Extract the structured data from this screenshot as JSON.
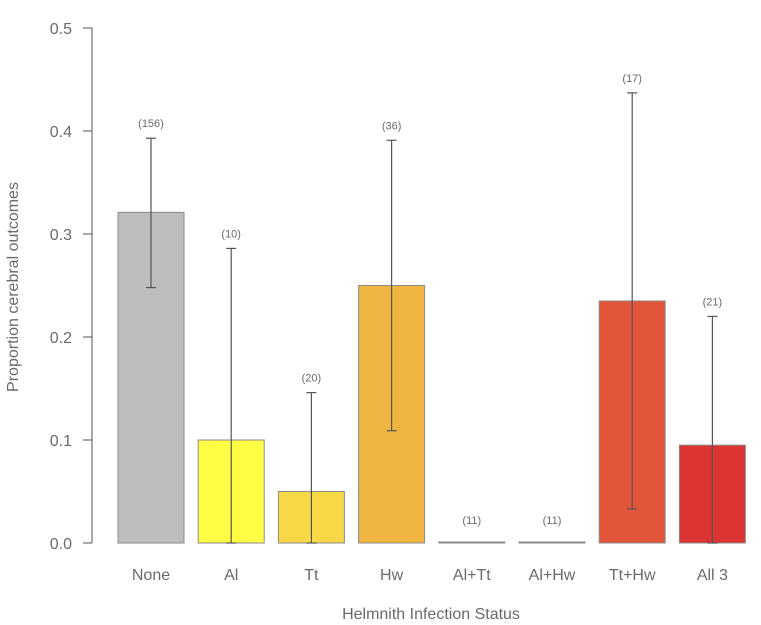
{
  "chart_data": {
    "type": "bar",
    "title": "",
    "xlabel": "Helmnith Infection Status",
    "ylabel": "Proportion cerebral outcomes",
    "ylim": [
      0,
      0.5
    ],
    "yticks": [
      "0.0",
      "0.1",
      "0.2",
      "0.3",
      "0.4",
      "0.5"
    ],
    "grid": false,
    "categories": [
      "None",
      "Al",
      "Tt",
      "Hw",
      "Al+Tt",
      "Al+Hw",
      "Tt+Hw",
      "All 3"
    ],
    "values": [
      0.321,
      0.1,
      0.05,
      0.25,
      0,
      0,
      0.235,
      0.095
    ],
    "error_upper": [
      0.393,
      0.286,
      0.146,
      0.391,
      0,
      0,
      0.437,
      0.22
    ],
    "error_lower": [
      0.248,
      0,
      0,
      0.109,
      0,
      0,
      0.033,
      0
    ],
    "counts": [
      "(156)",
      "(10)",
      "(20)",
      "(36)",
      "(11)",
      "(11)",
      "(17)",
      "(21)"
    ],
    "colors": [
      "#bdbdbd",
      "#fffe44",
      "#f8d846",
      "#f0b541",
      "#cfcfcf",
      "#cfcfcf",
      "#e25538",
      "#dc3333"
    ]
  }
}
